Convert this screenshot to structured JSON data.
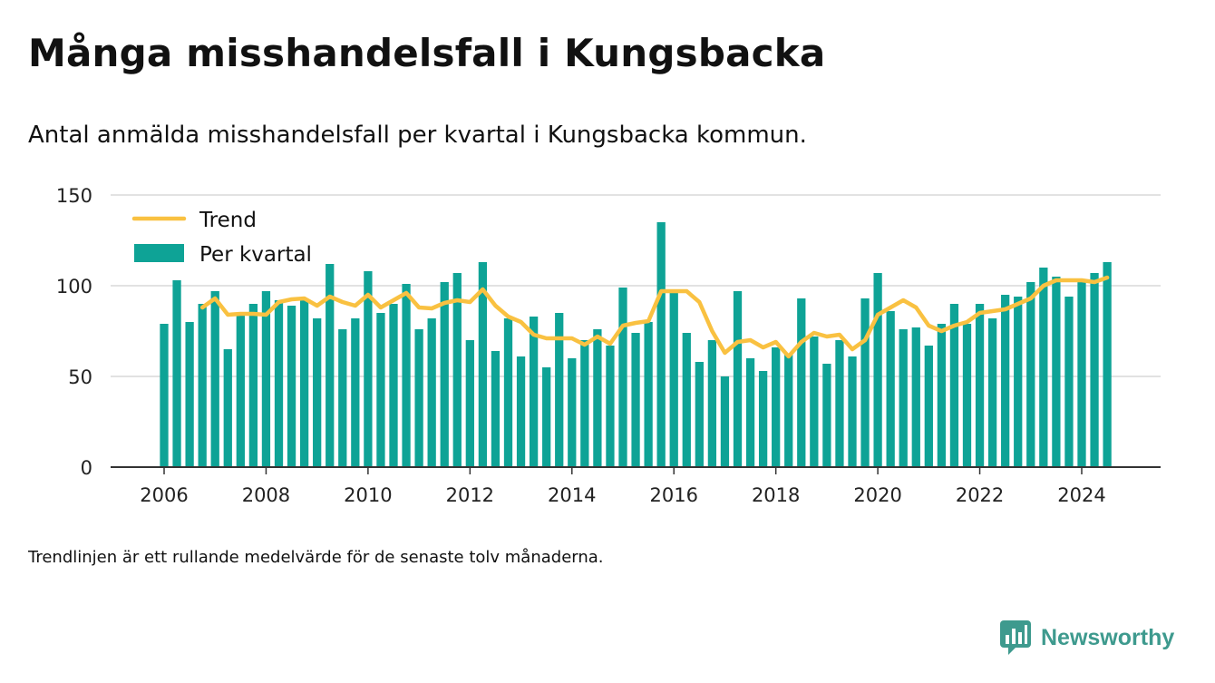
{
  "header": {
    "title": "Många misshandelsfall i Kungsbacka",
    "subtitle": "Antal anmälda misshandelsfall per kvartal i Kungsbacka kommun."
  },
  "footer": {
    "note": "Trendlinjen är ett rullande medelvärde för de senaste tolv månaderna.",
    "brand": "Newsworthy"
  },
  "colors": {
    "bars": "#0ea396",
    "trend": "#f9c141",
    "grid": "#d9d9d9",
    "axis": "#333333",
    "brand": "#3e9a8e"
  },
  "chart_data": {
    "type": "bar",
    "title": "",
    "xlabel": "",
    "ylabel": "",
    "ylim": [
      0,
      150
    ],
    "yticks": [
      0,
      50,
      100,
      150
    ],
    "xticks": [
      2006,
      2008,
      2010,
      2012,
      2014,
      2016,
      2018,
      2020,
      2022,
      2024
    ],
    "grid": true,
    "legend_position": "top-left",
    "legend": [
      "Trend",
      "Per kvartal"
    ],
    "x": [
      "2006 Q1",
      "2006 Q2",
      "2006 Q3",
      "2006 Q4",
      "2007 Q1",
      "2007 Q2",
      "2007 Q3",
      "2007 Q4",
      "2008 Q1",
      "2008 Q2",
      "2008 Q3",
      "2008 Q4",
      "2009 Q1",
      "2009 Q2",
      "2009 Q3",
      "2009 Q4",
      "2010 Q1",
      "2010 Q2",
      "2010 Q3",
      "2010 Q4",
      "2011 Q1",
      "2011 Q2",
      "2011 Q3",
      "2011 Q4",
      "2012 Q1",
      "2012 Q2",
      "2012 Q3",
      "2012 Q4",
      "2013 Q1",
      "2013 Q2",
      "2013 Q3",
      "2013 Q4",
      "2014 Q1",
      "2014 Q2",
      "2014 Q3",
      "2014 Q4",
      "2015 Q1",
      "2015 Q2",
      "2015 Q3",
      "2015 Q4",
      "2016 Q1",
      "2016 Q2",
      "2016 Q3",
      "2016 Q4",
      "2017 Q1",
      "2017 Q2",
      "2017 Q3",
      "2017 Q4",
      "2018 Q1",
      "2018 Q2",
      "2018 Q3",
      "2018 Q4",
      "2019 Q1",
      "2019 Q2",
      "2019 Q3",
      "2019 Q4",
      "2020 Q1",
      "2020 Q2",
      "2020 Q3",
      "2020 Q4",
      "2021 Q1",
      "2021 Q2",
      "2021 Q3",
      "2021 Q4",
      "2022 Q1",
      "2022 Q2",
      "2022 Q3",
      "2022 Q4",
      "2023 Q1",
      "2023 Q2",
      "2023 Q3",
      "2023 Q4",
      "2024 Q1",
      "2024 Q2",
      "2024 Q3"
    ],
    "series": [
      {
        "name": "Per kvartal",
        "type": "bar",
        "values": [
          79,
          103,
          80,
          90,
          97,
          65,
          84,
          90,
          97,
          92,
          89,
          92,
          82,
          112,
          76,
          82,
          108,
          85,
          90,
          101,
          76,
          82,
          102,
          107,
          70,
          113,
          64,
          82,
          61,
          83,
          55,
          85,
          60,
          70,
          76,
          67,
          99,
          74,
          80,
          135,
          97,
          74,
          58,
          70,
          50,
          97,
          60,
          53,
          66,
          62,
          93,
          72,
          57,
          70,
          61,
          93,
          107,
          86,
          76,
          77,
          67,
          79,
          90,
          79,
          90,
          82,
          95,
          94,
          102,
          110,
          105,
          94,
          102,
          107,
          113
        ]
      },
      {
        "name": "Trend",
        "type": "line",
        "values": [
          null,
          null,
          null,
          88,
          93,
          84,
          84.5,
          84.5,
          84,
          91,
          92.5,
          93,
          89,
          94,
          91,
          89,
          95,
          88,
          92,
          96,
          88,
          87.5,
          90.5,
          92,
          91,
          98,
          89,
          83,
          80,
          73,
          71,
          71,
          71,
          67.5,
          72,
          68,
          78,
          79.5,
          80.5,
          97,
          97,
          97,
          91,
          75,
          63,
          69,
          70,
          66,
          69,
          61,
          69,
          74,
          72,
          73,
          65,
          70,
          84,
          88,
          92,
          88,
          78,
          75,
          78,
          80,
          85,
          86,
          87,
          90,
          93,
          100,
          103,
          103,
          103,
          102,
          104.5
        ]
      }
    ]
  }
}
